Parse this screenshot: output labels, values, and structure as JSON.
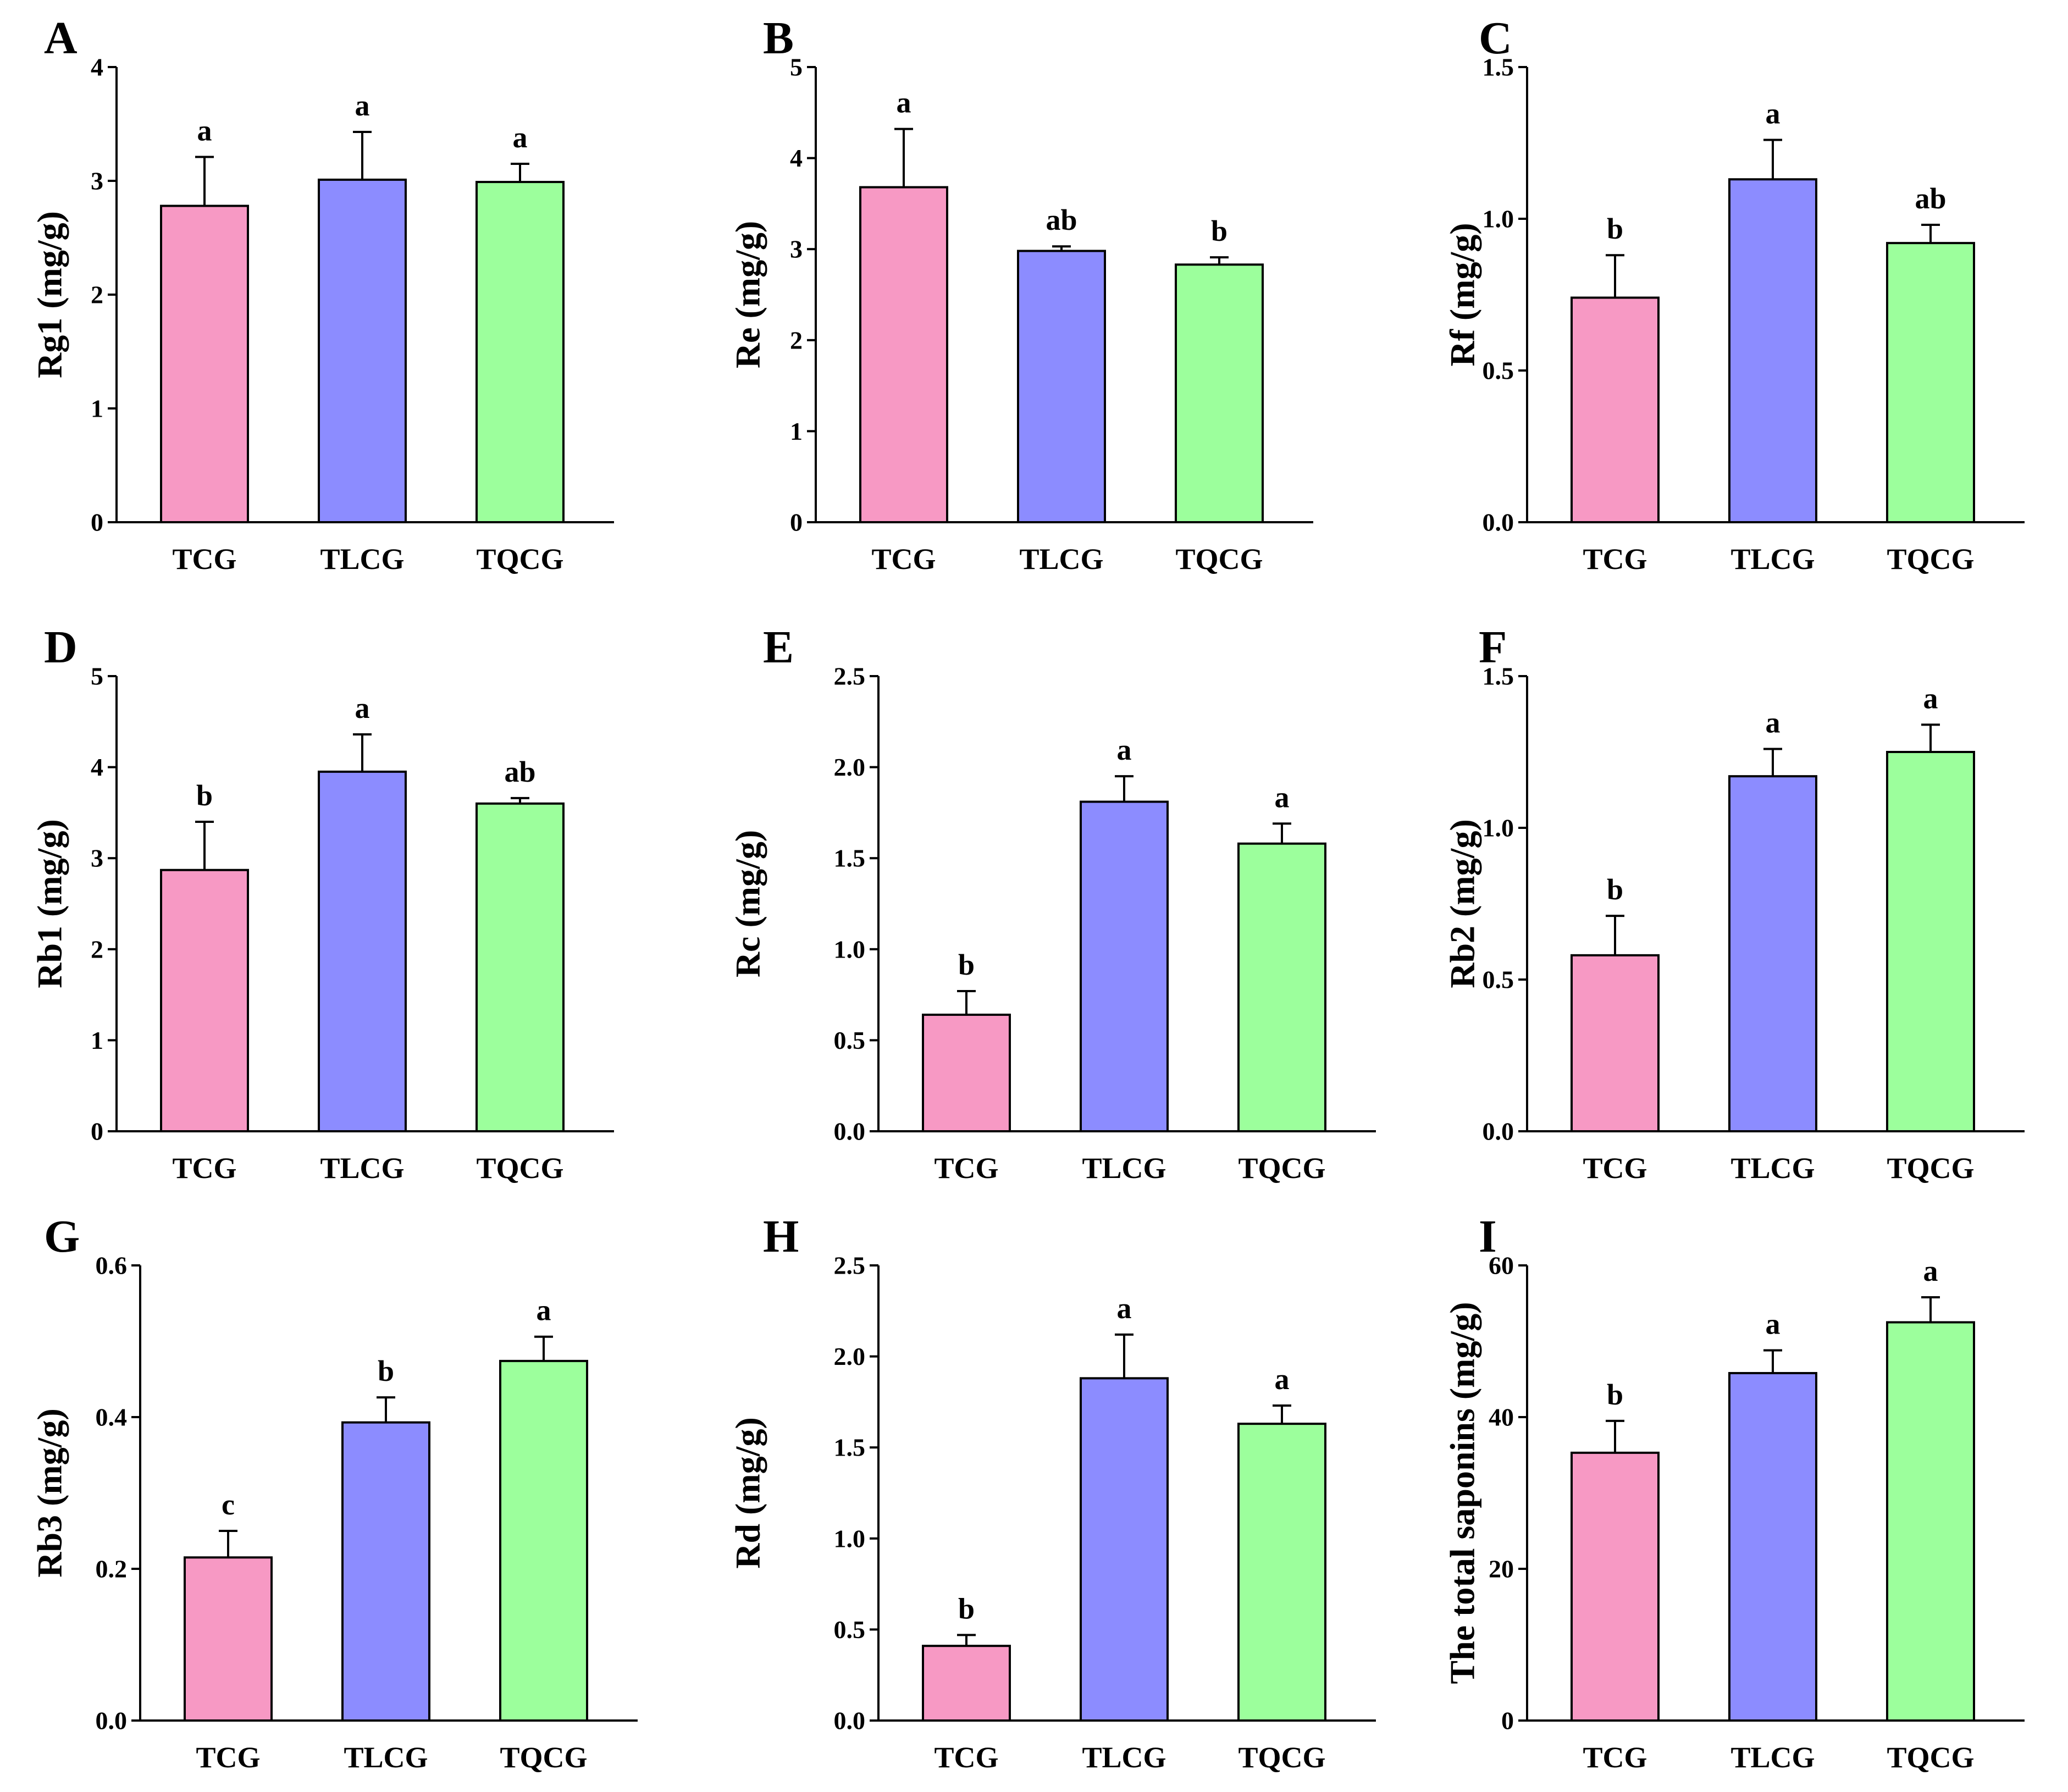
{
  "colors": {
    "TCG": "#f799c4",
    "TLCG": "#8c8cff",
    "TQCG": "#9cff9c",
    "axis": "#000000",
    "error_bar": "#000000"
  },
  "chart_data": [
    {
      "panel": "A",
      "type": "bar",
      "categories": [
        "TCG",
        "TLCG",
        "TQCG"
      ],
      "values": [
        2.78,
        3.01,
        2.99
      ],
      "errors": [
        0.43,
        0.42,
        0.16
      ],
      "significance": [
        "a",
        "a",
        "a"
      ],
      "ylabel": "Rg1 (mg/g)",
      "ylim": [
        0,
        4
      ],
      "yticks": [
        0,
        1,
        2,
        3,
        4
      ],
      "ytick_labels": [
        "0",
        "1",
        "2",
        "3",
        "4"
      ]
    },
    {
      "panel": "B",
      "type": "bar",
      "categories": [
        "TCG",
        "TLCG",
        "TQCG"
      ],
      "values": [
        3.68,
        2.98,
        2.83
      ],
      "errors": [
        0.64,
        0.05,
        0.08
      ],
      "significance": [
        "a",
        "ab",
        "b"
      ],
      "ylabel": "Re (mg/g)",
      "ylim": [
        0,
        5
      ],
      "yticks": [
        0,
        1,
        2,
        3,
        4,
        5
      ],
      "ytick_labels": [
        "0",
        "1",
        "2",
        "3",
        "4",
        "5"
      ]
    },
    {
      "panel": "C",
      "type": "bar",
      "categories": [
        "TCG",
        "TLCG",
        "TQCG"
      ],
      "values": [
        0.74,
        1.13,
        0.92
      ],
      "errors": [
        0.14,
        0.13,
        0.06
      ],
      "significance": [
        "b",
        "a",
        "ab"
      ],
      "ylabel": "Rf (mg/g)",
      "ylim": [
        0,
        1.5
      ],
      "yticks": [
        0,
        0.5,
        1.0,
        1.5
      ],
      "ytick_labels": [
        "0.0",
        "0.5",
        "1.0",
        "1.5"
      ]
    },
    {
      "panel": "D",
      "type": "bar",
      "categories": [
        "TCG",
        "TLCG",
        "TQCG"
      ],
      "values": [
        2.87,
        3.95,
        3.6
      ],
      "errors": [
        0.53,
        0.41,
        0.06
      ],
      "significance": [
        "b",
        "a",
        "ab"
      ],
      "ylabel": "Rb1 (mg/g)",
      "ylim": [
        0,
        5
      ],
      "yticks": [
        0,
        1,
        2,
        3,
        4,
        5
      ],
      "ytick_labels": [
        "0",
        "1",
        "2",
        "3",
        "4",
        "5"
      ]
    },
    {
      "panel": "E",
      "type": "bar",
      "categories": [
        "TCG",
        "TLCG",
        "TQCG"
      ],
      "values": [
        0.64,
        1.81,
        1.58
      ],
      "errors": [
        0.13,
        0.14,
        0.11
      ],
      "significance": [
        "b",
        "a",
        "a"
      ],
      "ylabel": "Rc (mg/g)",
      "ylim": [
        0,
        2.5
      ],
      "yticks": [
        0,
        0.5,
        1.0,
        1.5,
        2.0,
        2.5
      ],
      "ytick_labels": [
        "0.0",
        "0.5",
        "1.0",
        "1.5",
        "2.0",
        "2.5"
      ]
    },
    {
      "panel": "F",
      "type": "bar",
      "categories": [
        "TCG",
        "TLCG",
        "TQCG"
      ],
      "values": [
        0.58,
        1.17,
        1.25
      ],
      "errors": [
        0.13,
        0.09,
        0.09
      ],
      "significance": [
        "b",
        "a",
        "a"
      ],
      "ylabel": "Rb2 (mg/g)",
      "ylim": [
        0,
        1.5
      ],
      "yticks": [
        0,
        0.5,
        1.0,
        1.5
      ],
      "ytick_labels": [
        "0.0",
        "0.5",
        "1.0",
        "1.5"
      ]
    },
    {
      "panel": "G",
      "type": "bar",
      "categories": [
        "TCG",
        "TLCG",
        "TQCG"
      ],
      "values": [
        0.215,
        0.393,
        0.474
      ],
      "errors": [
        0.035,
        0.033,
        0.032
      ],
      "significance": [
        "c",
        "b",
        "a"
      ],
      "ylabel": "Rb3 (mg/g)",
      "ylim": [
        0,
        0.6
      ],
      "yticks": [
        0,
        0.2,
        0.4,
        0.6
      ],
      "ytick_labels": [
        "0.0",
        "0.2",
        "0.4",
        "0.6"
      ]
    },
    {
      "panel": "H",
      "type": "bar",
      "categories": [
        "TCG",
        "TLCG",
        "TQCG"
      ],
      "values": [
        0.41,
        1.88,
        1.63
      ],
      "errors": [
        0.06,
        0.24,
        0.1
      ],
      "significance": [
        "b",
        "a",
        "a"
      ],
      "ylabel": "Rd (mg/g)",
      "ylim": [
        0,
        2.5
      ],
      "yticks": [
        0,
        0.5,
        1.0,
        1.5,
        2.0,
        2.5
      ],
      "ytick_labels": [
        "0.0",
        "0.5",
        "1.0",
        "1.5",
        "2.0",
        "2.5"
      ]
    },
    {
      "panel": "I",
      "type": "bar",
      "categories": [
        "TCG",
        "TLCG",
        "TQCG"
      ],
      "values": [
        35.3,
        45.8,
        52.5
      ],
      "errors": [
        4.2,
        3.0,
        3.3
      ],
      "significance": [
        "b",
        "a",
        "a"
      ],
      "ylabel": "The total saponins (mg/g)",
      "ylim": [
        0,
        60
      ],
      "yticks": [
        0,
        20,
        40,
        60
      ],
      "ytick_labels": [
        "0",
        "20",
        "40",
        "60"
      ]
    }
  ]
}
